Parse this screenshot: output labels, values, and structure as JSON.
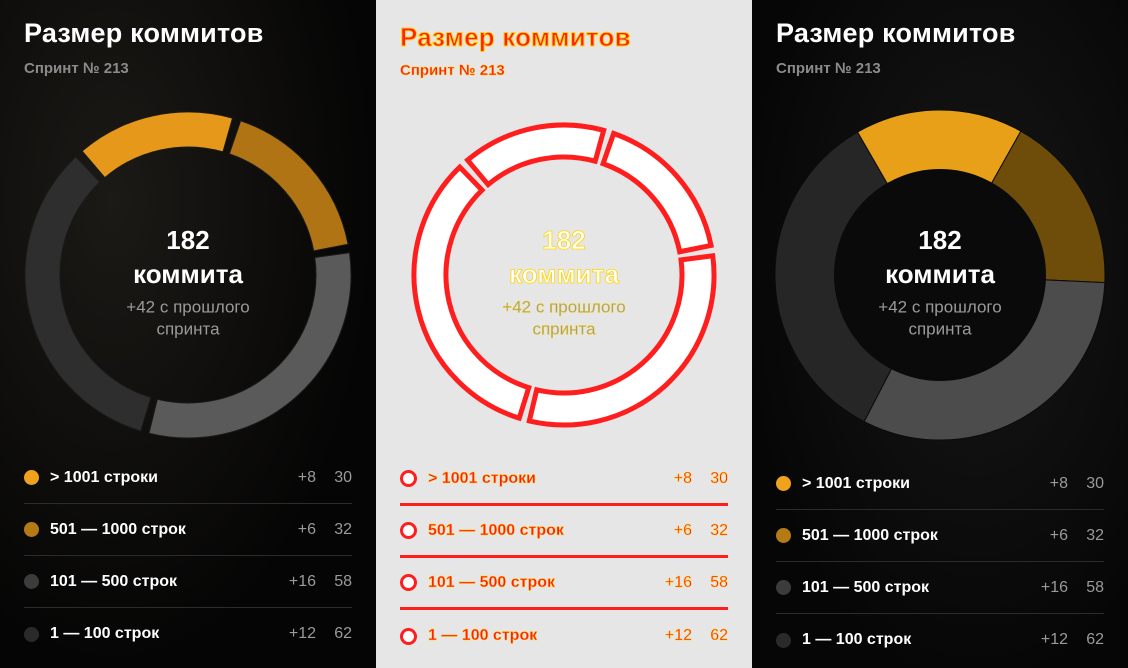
{
  "title": "Размер коммитов",
  "subtitle": "Спринт № 213",
  "center": {
    "value": "182",
    "unit": "коммита",
    "delta_line1": "+42 с прошлого",
    "delta_line2": "спринта"
  },
  "colors": {
    "orange": "#f0a21c",
    "dark_orange": "#b47a14",
    "gray": "#555555",
    "dark": "#2a2a2a",
    "red": "#ff1e1e"
  },
  "legend": [
    {
      "label": "> 1001 строки",
      "delta": "+8",
      "count": "30",
      "color": "#f0a21c"
    },
    {
      "label": "501 — 1000 строк",
      "delta": "+6",
      "count": "32",
      "color": "#b47a14"
    },
    {
      "label": "101 — 500 строк",
      "delta": "+16",
      "count": "58",
      "color": "#3c3c3c"
    },
    {
      "label": "1 — 100 строк",
      "delta": "+12",
      "count": "62",
      "color": "#2a2a2a"
    }
  ],
  "chart_data": {
    "type": "pie",
    "categories": [
      "> 1001 строки",
      "501 — 1000 строк",
      "101 — 500 строк",
      "1 — 100 строк"
    ],
    "values": [
      30,
      32,
      58,
      62
    ],
    "deltas": [
      8,
      6,
      16,
      12
    ],
    "total": 182
  }
}
